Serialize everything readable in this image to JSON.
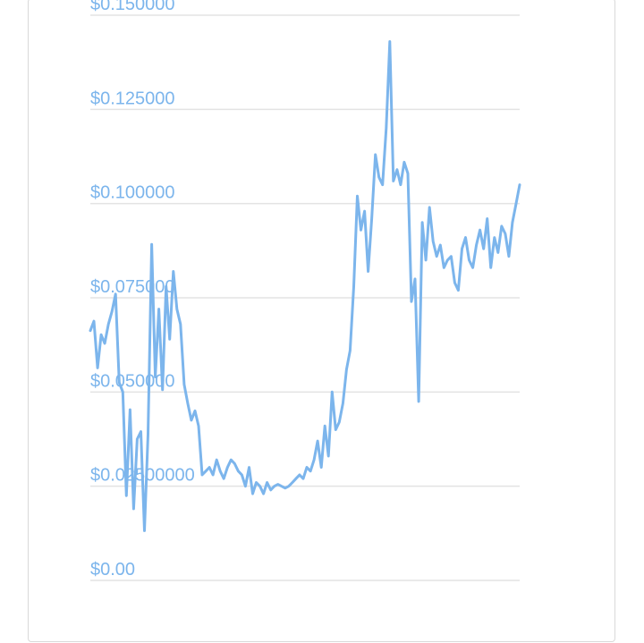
{
  "chart_data": {
    "type": "line",
    "title": "",
    "xlabel": "",
    "ylabel": "",
    "ylim": [
      0,
      0.15
    ],
    "y_ticks": [
      {
        "value": 0,
        "label": "$0.00"
      },
      {
        "value": 0.025,
        "label": "$0.02500000"
      },
      {
        "value": 0.05,
        "label": "$0.050000"
      },
      {
        "value": 0.075,
        "label": "$0.075000"
      },
      {
        "value": 0.1,
        "label": "$0.100000"
      },
      {
        "value": 0.125,
        "label": "$0.125000"
      },
      {
        "value": 0.15,
        "label": "$0.150000"
      }
    ],
    "grid": true,
    "legend": "none",
    "series": [
      {
        "color": "#7cb5ec",
        "values": [
          0.0663,
          0.0688,
          0.0564,
          0.0652,
          0.0629,
          0.068,
          0.0714,
          0.076,
          0.0525,
          0.05,
          0.0225,
          0.0453,
          0.019,
          0.0375,
          0.0395,
          0.0132,
          0.0388,
          0.0892,
          0.054,
          0.072,
          0.0506,
          0.078,
          0.064,
          0.082,
          0.072,
          0.068,
          0.052,
          0.047,
          0.0425,
          0.045,
          0.041,
          0.028,
          0.029,
          0.03,
          0.028,
          0.032,
          0.029,
          0.027,
          0.03,
          0.032,
          0.031,
          0.029,
          0.028,
          0.025,
          0.03,
          0.023,
          0.026,
          0.025,
          0.023,
          0.026,
          0.024,
          0.025,
          0.0255,
          0.025,
          0.0245,
          0.025,
          0.026,
          0.027,
          0.028,
          0.027,
          0.03,
          0.029,
          0.032,
          0.037,
          0.03,
          0.041,
          0.033,
          0.05,
          0.04,
          0.042,
          0.047,
          0.056,
          0.061,
          0.078,
          0.102,
          0.093,
          0.098,
          0.082,
          0.096,
          0.113,
          0.107,
          0.105,
          0.12,
          0.143,
          0.106,
          0.109,
          0.105,
          0.111,
          0.108,
          0.074,
          0.08,
          0.0475,
          0.095,
          0.085,
          0.099,
          0.09,
          0.086,
          0.089,
          0.083,
          0.085,
          0.086,
          0.079,
          0.077,
          0.088,
          0.091,
          0.085,
          0.083,
          0.089,
          0.093,
          0.088,
          0.096,
          0.083,
          0.091,
          0.087,
          0.094,
          0.092,
          0.086,
          0.095,
          0.1,
          0.105
        ]
      }
    ]
  }
}
